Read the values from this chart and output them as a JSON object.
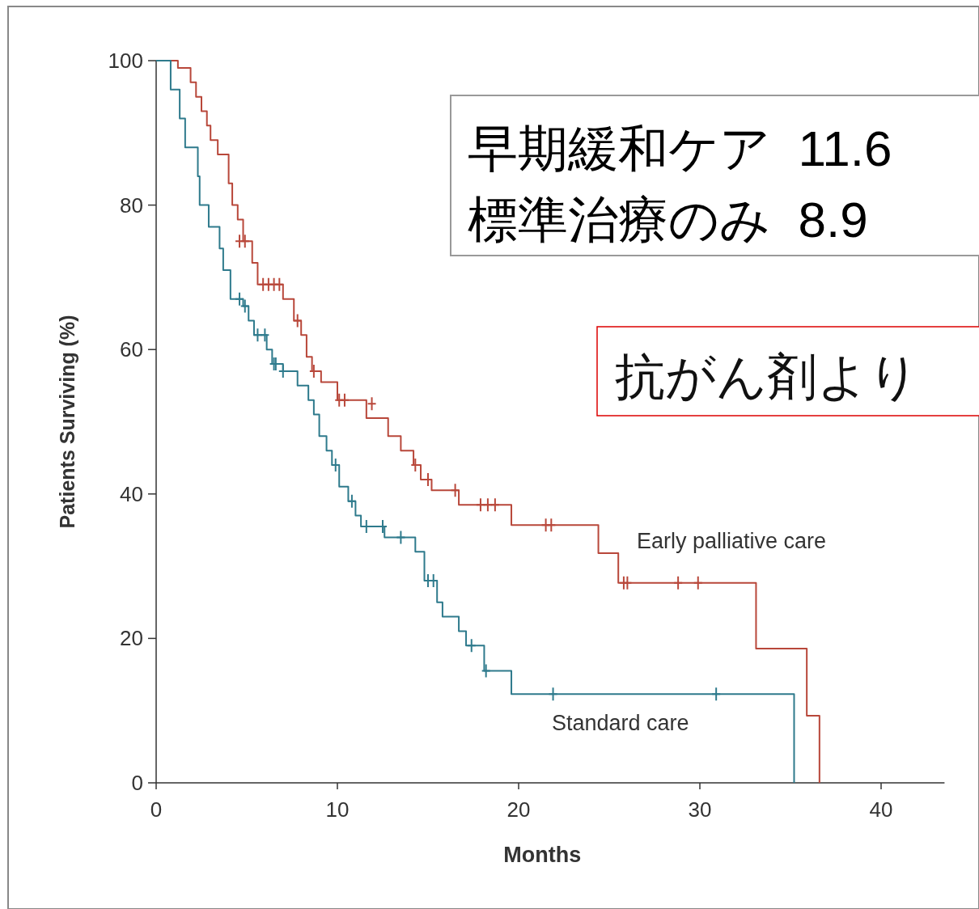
{
  "chart_data": {
    "type": "step",
    "xlabel": "Months",
    "ylabel": "Patients Surviving (%)",
    "xlim": [
      0,
      43.5
    ],
    "ylim": [
      0,
      100
    ],
    "xticks": [
      0,
      10,
      20,
      30,
      40
    ],
    "yticks": [
      0,
      20,
      40,
      60,
      80,
      100
    ],
    "grid": false,
    "annotations": [
      "早期緩和ケア  11.6",
      "標準治療のみ  8.9",
      "抗がん剤より"
    ],
    "series": [
      {
        "name": "Early palliative care",
        "color": "#b8473a",
        "x": [
          0,
          1.2,
          1.9,
          2.2,
          2.5,
          2.8,
          3.0,
          3.4,
          4.0,
          4.2,
          4.5,
          4.8,
          5.3,
          5.6,
          7.0,
          7.6,
          8.0,
          8.3,
          8.6,
          9.1,
          10.0,
          11.6,
          12.8,
          13.5,
          14.2,
          14.6,
          15.2,
          16.7,
          19.6,
          24.4,
          25.5,
          33.1,
          35.9,
          36.6
        ],
        "values": [
          100,
          99,
          97,
          95,
          93,
          91,
          89,
          87,
          83,
          80,
          78,
          75,
          72,
          69,
          67,
          64,
          62,
          59,
          57,
          55.5,
          53,
          50.5,
          48,
          46,
          44,
          42,
          40.5,
          38.5,
          35.7,
          31.8,
          27.7,
          18.6,
          9.3,
          0
        ]
      },
      {
        "name": "Standard care",
        "color": "#2e7a8c",
        "x": [
          0,
          0.8,
          1.3,
          1.6,
          2.3,
          2.4,
          2.9,
          3.5,
          3.7,
          4.1,
          4.8,
          5.1,
          5.4,
          6.1,
          6.4,
          7.0,
          7.8,
          8.4,
          8.7,
          9.0,
          9.4,
          9.7,
          10.1,
          10.6,
          11.0,
          11.3,
          12.6,
          14.3,
          14.8,
          15.5,
          15.8,
          16.7,
          17.1,
          18.1,
          19.6,
          35.2
        ],
        "values": [
          100,
          96,
          92,
          88,
          84,
          80,
          77,
          74,
          71,
          67,
          66,
          64,
          62,
          60,
          58,
          57,
          55,
          53,
          51,
          48,
          46,
          44,
          41,
          39,
          37,
          35.5,
          34,
          32,
          28,
          25,
          23,
          21,
          19,
          15.5,
          12.3,
          0
        ]
      },
      {
        "type": "scatter",
        "marker": "cross",
        "color": "#b9483b",
        "x": [
          4.6,
          4.9,
          5.9,
          6.2,
          6.5,
          6.8,
          7.8,
          8.7,
          10.1,
          10.4,
          11.9,
          14.3,
          15.0,
          16.5,
          17.9,
          18.3,
          18.7,
          21.5,
          21.8,
          25.8,
          26.0,
          28.8,
          29.9
        ],
        "values": [
          75,
          75,
          69,
          69,
          69,
          69,
          64,
          57,
          53,
          53,
          52.5,
          44,
          42,
          40.5,
          38.5,
          38.5,
          38.5,
          35.7,
          35.7,
          27.7,
          27.7,
          27.7,
          27.7
        ]
      },
      {
        "type": "scatter",
        "marker": "cross",
        "color": "#2f7b8d",
        "x": [
          4.6,
          4.9,
          5.6,
          6.0,
          6.5,
          6.6,
          7.0,
          9.9,
          10.8,
          11.6,
          12.5,
          13.5,
          15.0,
          15.3,
          17.4,
          18.2,
          21.9,
          30.9
        ],
        "values": [
          67,
          66,
          62,
          62,
          58,
          58,
          57,
          44,
          39,
          35.5,
          35.5,
          34,
          28,
          28,
          19,
          15.5,
          12.3,
          12.3
        ]
      }
    ]
  }
}
